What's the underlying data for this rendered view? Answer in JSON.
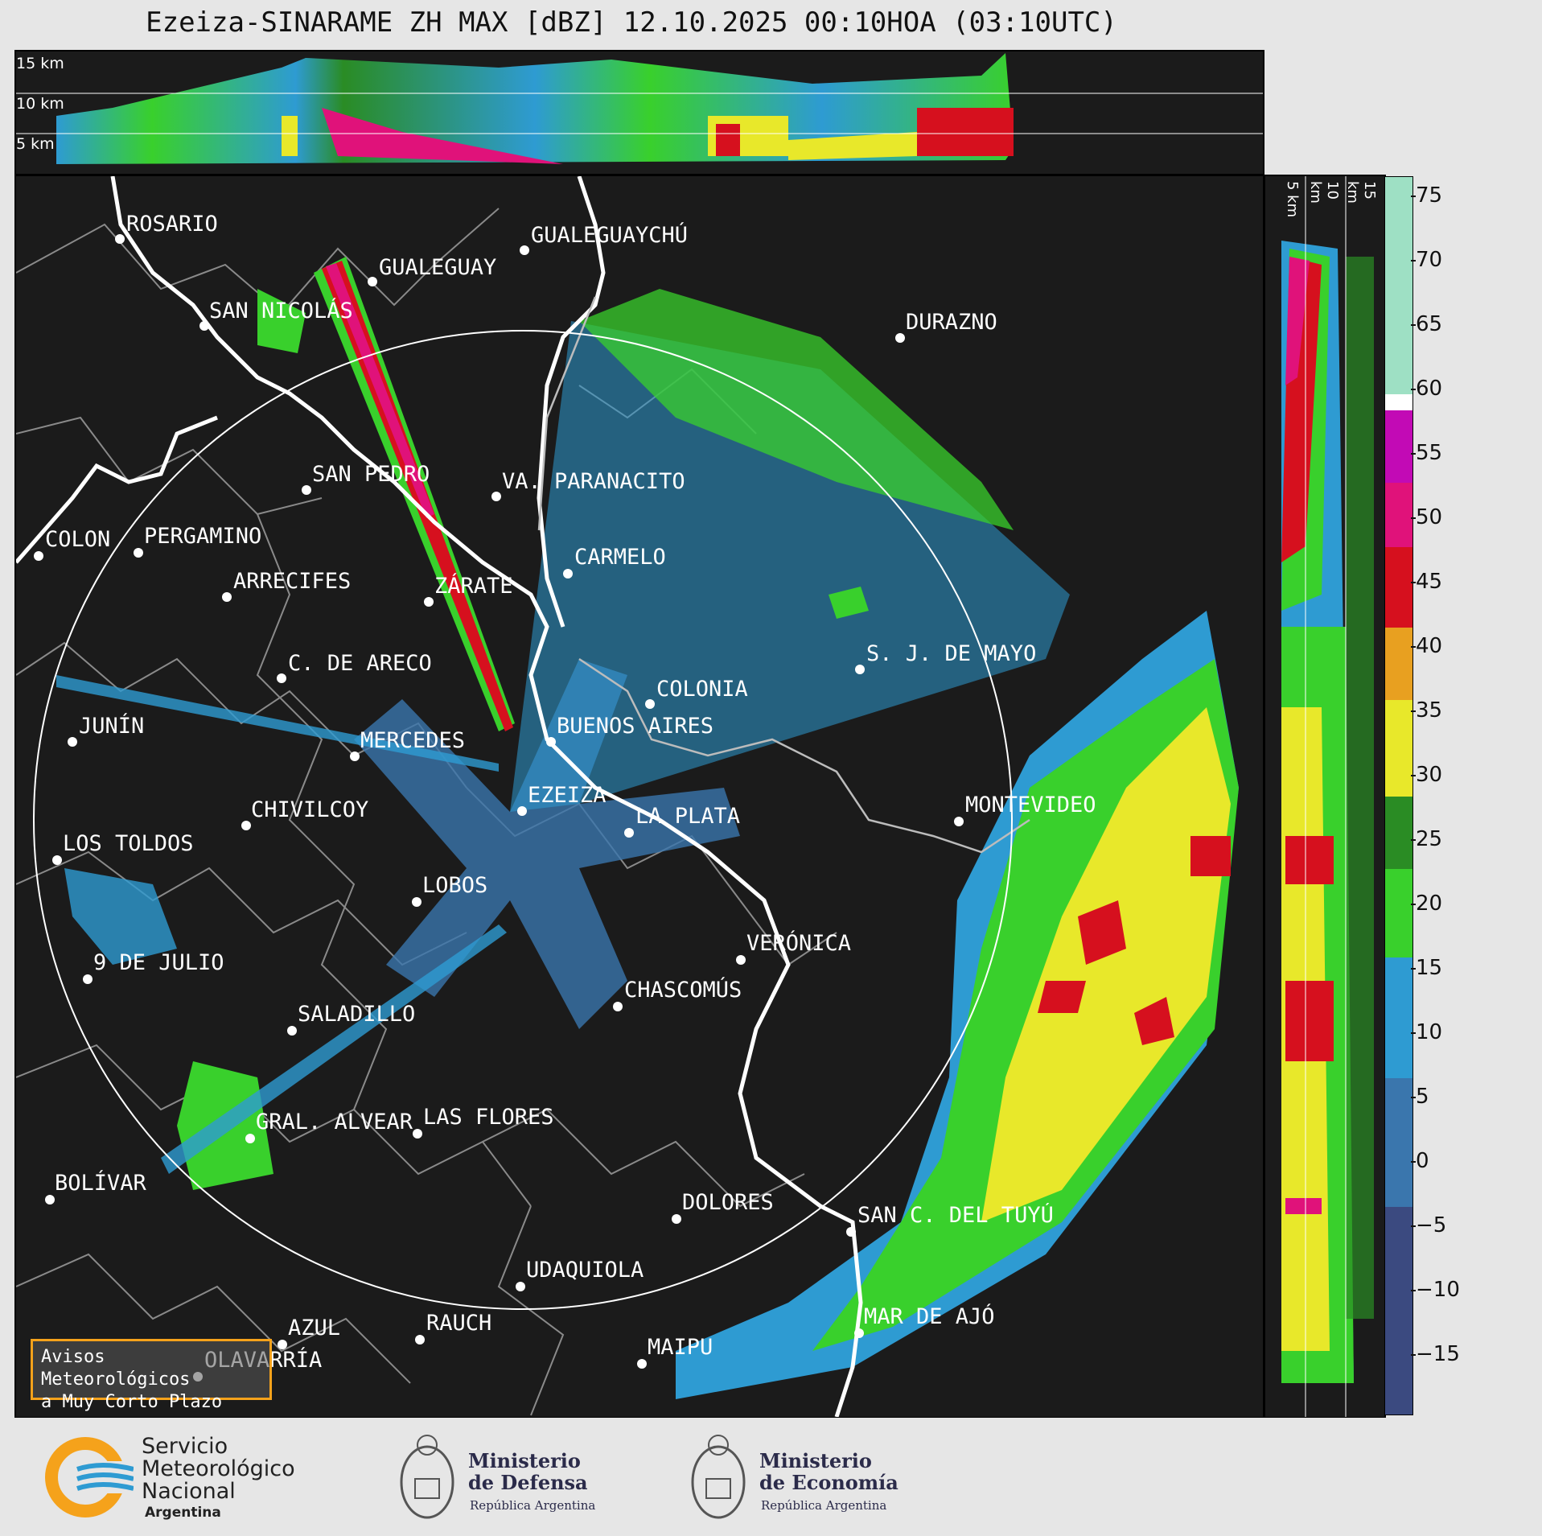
{
  "title": "Ezeiza-SINARAME ZH MAX [dBZ] 12.10.2025 00:10HOA (03:10UTC)",
  "top_altitudes": [
    "15 km",
    "10 km",
    "5 km"
  ],
  "side_altitudes": [
    "5 km",
    "10 km",
    "15 km"
  ],
  "colorbar": {
    "ticks": [
      "75",
      "70",
      "65",
      "60",
      "55",
      "50",
      "45",
      "40",
      "35",
      "30",
      "25",
      "20",
      "15",
      "10",
      "5",
      "0",
      "−5",
      "−10",
      "−15"
    ],
    "range": [
      -20,
      77
    ]
  },
  "cities": [
    {
      "name": "ROSARIO"
    },
    {
      "name": "GUALEGUAYCHÚ"
    },
    {
      "name": "GUALEGUAY"
    },
    {
      "name": "SAN NICOLÁS"
    },
    {
      "name": "DURAZNO"
    },
    {
      "name": "SAN PEDRO"
    },
    {
      "name": "VA. PARANACITO"
    },
    {
      "name": "COLON"
    },
    {
      "name": "PERGAMINO"
    },
    {
      "name": "CARMELO"
    },
    {
      "name": "ZÁRATE"
    },
    {
      "name": "ARRECIFES"
    },
    {
      "name": "S. J. DE MAYO"
    },
    {
      "name": "C. DE ARECO"
    },
    {
      "name": "COLONIA"
    },
    {
      "name": "JUNÍN"
    },
    {
      "name": "BUENOS AIRES"
    },
    {
      "name": "MERCEDES"
    },
    {
      "name": "EZEIZA"
    },
    {
      "name": "MONTEVIDEO"
    },
    {
      "name": "CHIVILCOY"
    },
    {
      "name": "LA PLATA"
    },
    {
      "name": "LOS TOLDOS"
    },
    {
      "name": "LOBOS"
    },
    {
      "name": "VERÓNICA"
    },
    {
      "name": "9 DE JULIO"
    },
    {
      "name": "CHASCOMÚS"
    },
    {
      "name": "SALADILLO"
    },
    {
      "name": "GRAL. ALVEAR"
    },
    {
      "name": "LAS FLORES"
    },
    {
      "name": "BOLÍVAR"
    },
    {
      "name": "DOLORES"
    },
    {
      "name": "SAN C. DEL TUYÚ"
    },
    {
      "name": "UDAQUIOLA"
    },
    {
      "name": "AZUL"
    },
    {
      "name": "RAUCH"
    },
    {
      "name": "MAR DE AJÓ"
    },
    {
      "name": "OLAVARRÍA"
    },
    {
      "name": "MAIPU"
    }
  ],
  "warning_box": {
    "line1": "Avisos Meteorológicos",
    "line2": "a Muy Corto Plazo"
  },
  "logos": {
    "smn": {
      "l1": "Servicio",
      "l2": "Meteorológico",
      "l3": "Nacional",
      "l4": "Argentina"
    },
    "defensa": {
      "l1": "Ministerio",
      "l2": "de Defensa",
      "sub": "República Argentina"
    },
    "economia": {
      "l1": "Ministerio",
      "l2": "de Economía",
      "sub": "República Argentina"
    }
  },
  "colors": {
    "background": "#1b1b1b",
    "ring": "#ffffff",
    "accent": "#f5a21b"
  }
}
